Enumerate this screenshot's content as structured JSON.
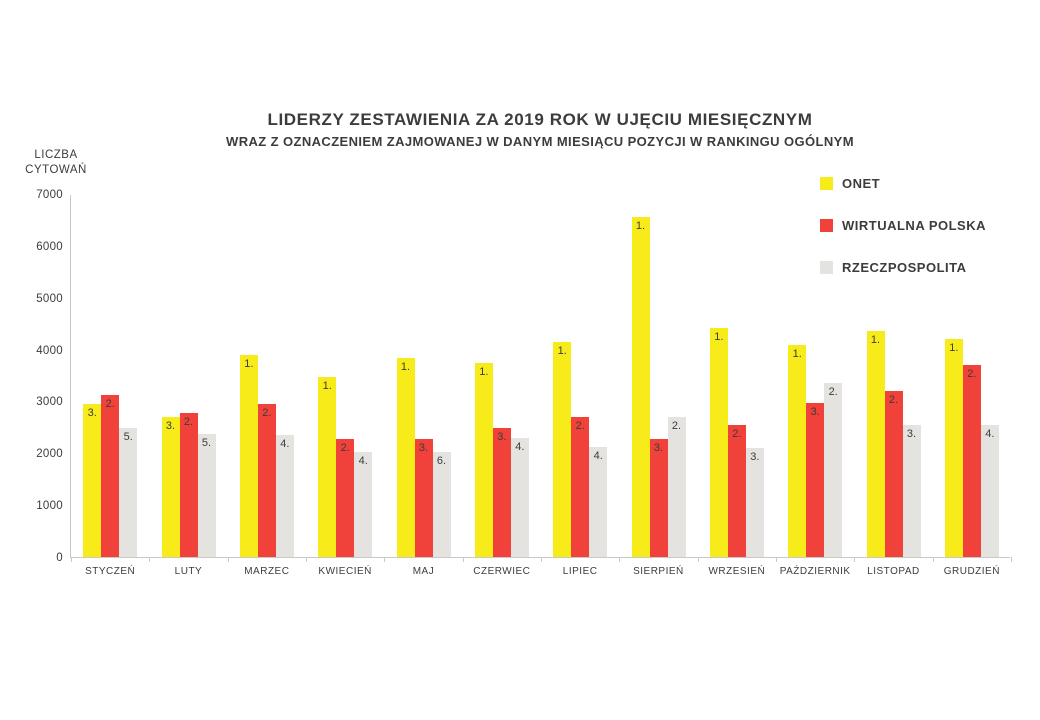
{
  "title": "LIDERZY ZESTAWIENIA ZA 2019 ROK W UJĘCIU MIESIĘCZNYM",
  "subtitle": "WRAZ Z OZNACZENIEM ZAJMOWANEJ W DANYM MIESIĄCU POZYCJI W RANKINGU OGÓLNYM",
  "y_axis_label": "LICZBA\nCYTOWAŃ",
  "colors": {
    "text": "#3c3c3b",
    "axis": "#c9c9c9",
    "onet": "#f7eb1a",
    "wirtualna_polska": "#f0413a",
    "rzeczpospolita": "#e4e3df"
  },
  "chart_data": {
    "type": "bar",
    "title": "LIDERZY ZESTAWIENIA ZA 2019 ROK W UJĘCIU MIESIĘCZNYM",
    "subtitle": "WRAZ Z OZNACZENIEM ZAJMOWANEJ W DANYM MIESIĄCU POZYCJI W RANKINGU OGÓLNYM",
    "ylabel": "LICZBA CYTOWAŃ",
    "xlabel": "",
    "ylim": [
      0,
      7000
    ],
    "yticks": [
      0,
      1000,
      2000,
      3000,
      4000,
      5000,
      6000,
      7000
    ],
    "grid": false,
    "legend_position": "right-top",
    "categories": [
      "STYCZEŃ",
      "LUTY",
      "MARZEC",
      "KWIECIEŃ",
      "MAJ",
      "CZERWIEC",
      "LIPIEC",
      "SIERPIEŃ",
      "WRZESIEŃ",
      "PAŹDZIERNIK",
      "LISTOPAD",
      "GRUDZIEŃ"
    ],
    "series": [
      {
        "name": "ONET",
        "color": "#f7eb1a",
        "values": [
          2950,
          2700,
          3900,
          3470,
          3830,
          3740,
          4150,
          6560,
          4420,
          4080,
          4350,
          4200
        ],
        "rank_labels": [
          "3.",
          "3.",
          "1.",
          "1.",
          "1.",
          "1.",
          "1.",
          "1.",
          "1.",
          "1.",
          "1.",
          "1."
        ]
      },
      {
        "name": "WIRTUALNA POLSKA",
        "color": "#f0413a",
        "values": [
          3130,
          2780,
          2950,
          2280,
          2280,
          2490,
          2700,
          2280,
          2550,
          2970,
          3200,
          3700
        ],
        "rank_labels": [
          "2.",
          "2.",
          "2.",
          "2.",
          "3.",
          "3.",
          "2.",
          "3.",
          "2.",
          "3.",
          "2.",
          "2."
        ]
      },
      {
        "name": "RZECZPOSPOLITA",
        "color": "#e4e3df",
        "values": [
          2480,
          2370,
          2350,
          2030,
          2020,
          2290,
          2130,
          2700,
          2100,
          3350,
          2550,
          2540
        ],
        "rank_labels": [
          "5.",
          "5.",
          "4.",
          "4.",
          "6.",
          "4.",
          "4.",
          "2.",
          "3.",
          "2.",
          "3.",
          "4."
        ]
      }
    ]
  }
}
